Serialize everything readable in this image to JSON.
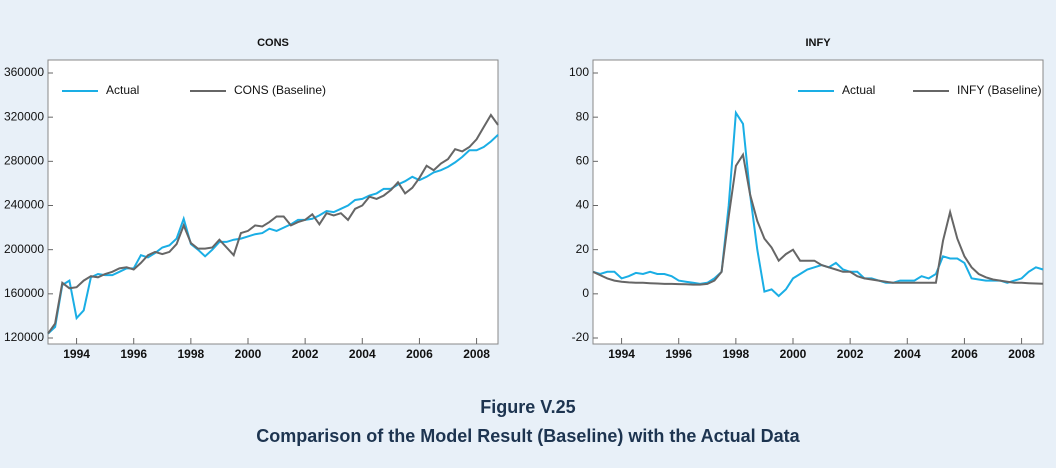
{
  "chart_data": [
    {
      "type": "line",
      "title": "CONS",
      "x": [
        1993,
        1993.25,
        1993.5,
        1993.75,
        1994,
        1994.25,
        1994.5,
        1994.75,
        1995,
        1995.25,
        1995.5,
        1995.75,
        1996,
        1996.25,
        1996.5,
        1996.75,
        1997,
        1997.25,
        1997.5,
        1997.75,
        1998,
        1998.25,
        1998.5,
        1998.75,
        1999,
        1999.25,
        1999.5,
        1999.75,
        2000,
        2000.25,
        2000.5,
        2000.75,
        2001,
        2001.25,
        2001.5,
        2001.75,
        2002,
        2002.25,
        2002.5,
        2002.75,
        2003,
        2003.25,
        2003.5,
        2003.75,
        2004,
        2004.25,
        2004.5,
        2004.75,
        2005,
        2005.25,
        2005.5,
        2005.75,
        2006,
        2006.25,
        2006.5,
        2006.75,
        2007,
        2007.25,
        2007.5,
        2007.75,
        2008,
        2008.25,
        2008.5,
        2008.75
      ],
      "series": [
        {
          "name": "Actual",
          "color": "#1aaee5",
          "values": [
            124000,
            130000,
            168000,
            172000,
            138000,
            145000,
            175000,
            178000,
            177000,
            177000,
            180000,
            183000,
            183000,
            195000,
            193000,
            197000,
            202000,
            204000,
            210000,
            228000,
            205000,
            200000,
            194000,
            200000,
            207000,
            207000,
            209000,
            210000,
            212000,
            214000,
            215000,
            219000,
            217000,
            220000,
            223000,
            227000,
            227000,
            228000,
            231000,
            235000,
            234000,
            237000,
            240000,
            245000,
            246000,
            249000,
            251000,
            255000,
            255000,
            259000,
            262000,
            266000,
            263000,
            266000,
            270000,
            272000,
            275000,
            279000,
            284000,
            290000,
            290000,
            293000,
            298000,
            304000
          ]
        },
        {
          "name": "CONS (Baseline)",
          "color": "#666666",
          "values": [
            124000,
            133000,
            170000,
            165000,
            166000,
            172000,
            176000,
            175000,
            178000,
            180000,
            183000,
            184000,
            182000,
            188000,
            195000,
            198000,
            196000,
            198000,
            205000,
            222000,
            206000,
            201000,
            201000,
            202000,
            209000,
            202000,
            195000,
            215000,
            217000,
            222000,
            221000,
            225000,
            230000,
            230000,
            222000,
            225000,
            227000,
            232000,
            223000,
            233000,
            231000,
            233000,
            227000,
            237000,
            240000,
            248000,
            246000,
            249000,
            254000,
            261000,
            251000,
            256000,
            265000,
            276000,
            272000,
            278000,
            282000,
            291000,
            289000,
            293000,
            300000,
            311000,
            322000,
            313000
          ]
        }
      ],
      "xlim": [
        1993,
        2008.75
      ],
      "xticks": [
        1994,
        1996,
        1998,
        2000,
        2002,
        2004,
        2006,
        2008
      ],
      "ylim": [
        120000,
        360000
      ],
      "yticks": [
        120000,
        160000,
        200000,
        240000,
        280000,
        320000,
        360000
      ],
      "legend": "upper left"
    },
    {
      "type": "line",
      "title": "INFY",
      "x": [
        1993,
        1993.25,
        1993.5,
        1993.75,
        1994,
        1994.25,
        1994.5,
        1994.75,
        1995,
        1995.25,
        1995.5,
        1995.75,
        1996,
        1996.25,
        1996.5,
        1996.75,
        1997,
        1997.25,
        1997.5,
        1997.75,
        1998,
        1998.25,
        1998.5,
        1998.75,
        1999,
        1999.25,
        1999.5,
        1999.75,
        2000,
        2000.25,
        2000.5,
        2000.75,
        2001,
        2001.25,
        2001.5,
        2001.75,
        2002,
        2002.25,
        2002.5,
        2002.75,
        2003,
        2003.25,
        2003.5,
        2003.75,
        2004,
        2004.25,
        2004.5,
        2004.75,
        2005,
        2005.25,
        2005.5,
        2005.75,
        2006,
        2006.25,
        2006.5,
        2006.75,
        2007,
        2007.25,
        2007.5,
        2007.75,
        2008,
        2008.25,
        2008.5,
        2008.75
      ],
      "series": [
        {
          "name": "Actual",
          "color": "#1aaee5",
          "values": [
            10,
            9,
            10,
            10,
            7,
            8,
            9.5,
            9,
            10,
            9,
            9,
            8,
            6,
            5.5,
            5,
            4.5,
            5,
            7,
            10,
            40,
            82,
            77,
            45,
            20,
            1,
            2,
            -1,
            2,
            7,
            9,
            11,
            12,
            13,
            12,
            14,
            11,
            10,
            10,
            7,
            7,
            6,
            5,
            5,
            6,
            6,
            6,
            8,
            7,
            9,
            17,
            16,
            16,
            14,
            7,
            6.5,
            6,
            6,
            6,
            5,
            6,
            7,
            10,
            12,
            11
          ]
        },
        {
          "name": "INFY (Baseline)",
          "color": "#666666",
          "values": [
            10,
            8.5,
            7,
            6,
            5.5,
            5.2,
            5,
            5,
            4.8,
            4.7,
            4.5,
            4.5,
            4.4,
            4.3,
            4.2,
            4.2,
            4.5,
            6,
            10,
            35,
            58,
            63,
            45,
            33,
            25,
            21,
            15,
            18,
            20,
            15,
            15,
            15,
            13,
            12,
            11,
            10,
            10,
            8,
            7,
            6.5,
            6,
            5.5,
            5,
            5,
            5,
            5,
            5,
            5,
            5,
            24,
            37,
            25,
            17,
            12,
            9,
            7.5,
            6.5,
            6,
            5.5,
            5,
            5,
            4.8,
            4.7,
            4.6
          ]
        }
      ],
      "xlim": [
        1993,
        2008.75
      ],
      "xticks": [
        1994,
        1996,
        1998,
        2000,
        2002,
        2004,
        2006,
        2008
      ],
      "ylim": [
        -20,
        100
      ],
      "yticks": [
        -20,
        0,
        20,
        40,
        60,
        80,
        100
      ],
      "legend": "upper right"
    }
  ],
  "figure": {
    "label": "Figure V.25",
    "caption": "Comparison of the Model Result (Baseline) with the Actual Data"
  }
}
